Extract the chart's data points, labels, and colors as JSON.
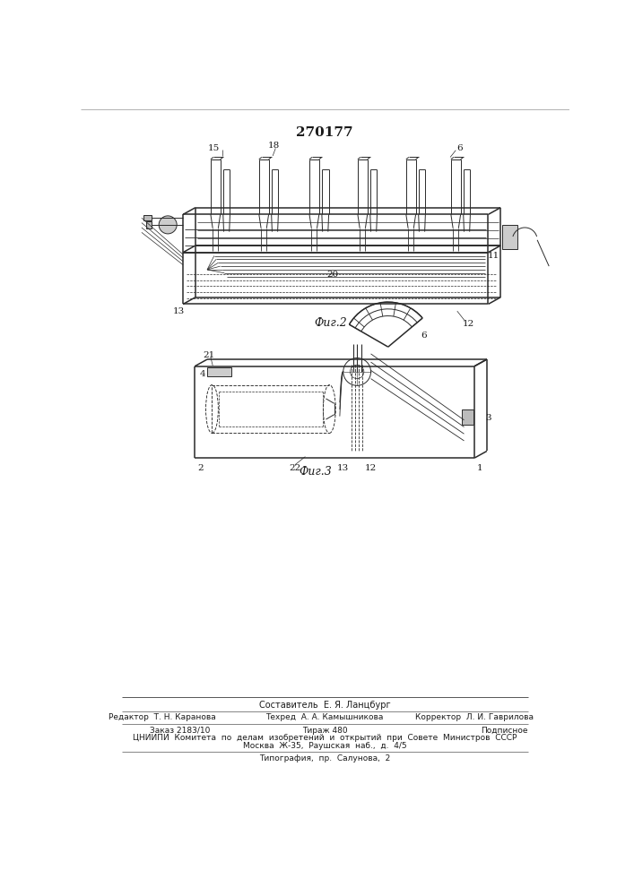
{
  "patent_number": "270177",
  "fig2_label": "Фиг.2",
  "fig3_label": "Фиг.3",
  "composer_label": "Составитель  Е. Я. Ланцбург",
  "editor_label": "Редактор  Т. Н. Каранова",
  "techred_label": "Техред  А. А. Камышникова",
  "corrector_label": "Корректор  Л. И. Гаврилова",
  "order_label": "Заказ 2183/10",
  "tirazh_label": "Тираж 480",
  "podpisnoe_label": "Подписное",
  "tsniip_label": "ЦНИИПИ  Комитета  по  делам  изобретений  и  открытий  при  Совете  Министров  СССР",
  "moscow_label": "Москва  Ж-35,  Раушская  наб.,  д.  4/5",
  "typography_label": "Типография,  пр.  Салунова,  2",
  "bg_color": "#ffffff",
  "line_color": "#2a2a2a",
  "label_color": "#1a1a1a"
}
